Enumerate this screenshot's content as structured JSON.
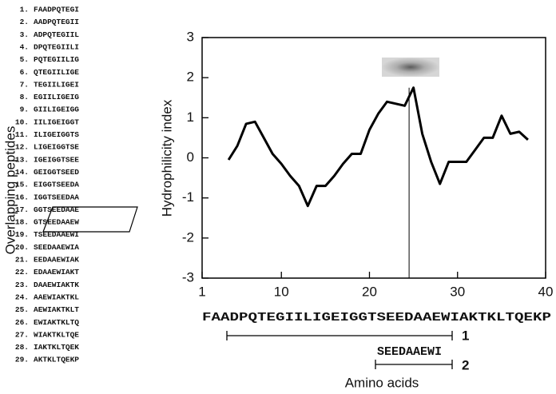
{
  "chart_data": {
    "type": "line",
    "ylabel": "Hydrophilicity index",
    "xlabel": "Amino acids",
    "side_label": "Overlapping peptides",
    "x": [
      4,
      5,
      6,
      7,
      8,
      9,
      10,
      11,
      12,
      13,
      14,
      15,
      16,
      17,
      18,
      19,
      20,
      21,
      22,
      23,
      24,
      25,
      26,
      27,
      28,
      29,
      30,
      31,
      32,
      33,
      34,
      35,
      36,
      37,
      38
    ],
    "values": [
      -0.05,
      0.3,
      0.85,
      0.9,
      0.5,
      0.1,
      -0.15,
      -0.45,
      -0.7,
      -1.2,
      -0.7,
      -0.7,
      -0.45,
      -0.15,
      0.1,
      0.1,
      0.7,
      1.1,
      1.4,
      1.35,
      1.3,
      1.75,
      0.6,
      -0.1,
      -0.65,
      -0.1,
      -0.1,
      -0.1,
      0.2,
      0.5,
      0.5,
      1.05,
      0.6,
      0.65,
      0.45
    ],
    "color": "#000000",
    "marker_x": 24.5,
    "xlim": [
      1,
      40
    ],
    "xticks": [
      1,
      10,
      20,
      30,
      40
    ],
    "ylim": [
      -3,
      3
    ],
    "yticks": [
      -3,
      -2,
      -1,
      0,
      1,
      2,
      3
    ],
    "sequence": "FAADPQTEGIILIGEIGGTSEEDAAEWIAKTKLTQEKP",
    "range1_label": "1",
    "range2_text": "SEEDAAEWI",
    "range2_label": "2",
    "peptide_numbers": [
      "1.",
      "2.",
      "3.",
      "4.",
      "5.",
      "6.",
      "7.",
      "8.",
      "9.",
      "10.",
      "11.",
      "12.",
      "13.",
      "14.",
      "15.",
      "16.",
      "17.",
      "18.",
      "19.",
      "20.",
      "21.",
      "22.",
      "23.",
      "24.",
      "25.",
      "26.",
      "27.",
      "28.",
      "29."
    ],
    "peptides": [
      "FAADPQTEGI",
      "AADPQTEGII",
      "ADPQTEGIIL",
      "DPQTEGIILI",
      "PQTEGIILIG",
      "QTEGIILIGE",
      "TEGIILIGEI",
      "EGIILIGEIG",
      "GIILIGEIGG",
      "IILIGEIGGT",
      "ILIGEIGGTS",
      "LIGEIGGTSE",
      "IGEIGGTSEE",
      "GEIGGTSEED",
      "EIGGTSEEDA",
      "IGGTSEEDAA",
      "GGTSEEDAAE",
      "GTSEEDAAEW",
      "TSEEDAAEWI",
      "SEEDAAEWIA",
      "EEDAAEWIAK",
      "EDAAEWIAKT",
      "DAAEWIAKTK",
      "AAEWIAKTKL",
      "AEWIAKTKLT",
      "EWIAKTKLTQ",
      "WIAKTKLTQE",
      "IAKTKLTQEK",
      "AKTKLTQEKP"
    ]
  }
}
